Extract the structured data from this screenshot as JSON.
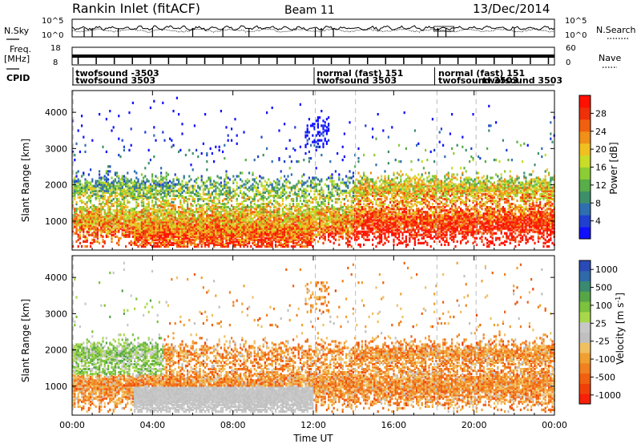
{
  "header": {
    "title": "Rankin Inlet (fitACF)",
    "beam": "Beam 11",
    "date": "13/Dec/2014"
  },
  "left_labels": {
    "nsky": "N.Sky",
    "freq": "Freq.",
    "freq_unit": "[MHz]",
    "cpid": "CPID"
  },
  "right_labels": {
    "nsearch": "N.Search",
    "nave": "Nave"
  },
  "noise_axis": {
    "left_top": "10^5",
    "left_bottom": "10^0",
    "right_top": "10^5",
    "right_bottom": "10^0"
  },
  "freq_axis": {
    "left_top": "18",
    "left_bottom": "8",
    "right_top": "60",
    "right_bottom": "0"
  },
  "cpid_labels": [
    {
      "text": "twofsound  -3503",
      "hour": 0.05,
      "row": 0
    },
    {
      "text": "twofsound  3503",
      "hour": 0.05,
      "row": 1
    },
    {
      "text": "normal (fast)  151",
      "hour": 12.05,
      "row": 0
    },
    {
      "text": "twofsound  3503",
      "hour": 12.05,
      "row": 1
    },
    {
      "text": "normal (fast)  151",
      "hour": 18.1,
      "row": 0
    },
    {
      "text": "twofsound  3503",
      "hour": 18.1,
      "row": 1
    },
    {
      "text": "twofsound  3503",
      "hour": 20.3,
      "row": 1
    }
  ],
  "chart_data": [
    {
      "type": "heatmap",
      "name": "power",
      "ylabel": "Slant Range [km]",
      "x_ticks": [
        "00:00",
        "04:00",
        "08:00",
        "12:00",
        "16:00",
        "20:00",
        "00:00"
      ],
      "y_ticks": [
        1000,
        2000,
        3000,
        4000
      ],
      "ylim": [
        200,
        4600
      ],
      "xlim_hours": [
        0,
        24
      ],
      "colorbar_label": "Power [dB]",
      "colorbar_ticks": [
        4,
        8,
        12,
        16,
        20,
        24,
        28
      ],
      "colorbar_range": [
        0,
        32
      ],
      "colors": [
        "#1010ff",
        "#2040d0",
        "#2f6fb0",
        "#3d8f6a",
        "#58ae48",
        "#8ccc34",
        "#c8dc28",
        "#f0c020",
        "#f09018",
        "#f06010",
        "#f03008",
        "#ff1000"
      ]
    },
    {
      "type": "heatmap",
      "name": "velocity",
      "xlabel": "Time UT",
      "ylabel": "Slant Range [km]",
      "x_ticks": [
        "00:00",
        "04:00",
        "08:00",
        "12:00",
        "16:00",
        "20:00",
        "00:00"
      ],
      "y_ticks": [
        1000,
        2000,
        3000,
        4000
      ],
      "ylim": [
        200,
        4600
      ],
      "xlim_hours": [
        0,
        24
      ],
      "colorbar_label": "Velocity [m s^-1]",
      "colorbar_ticks": [
        "1000",
        "500",
        "100",
        "25",
        "-25",
        "-100",
        "-500",
        "-1000"
      ],
      "colors": [
        "#2a4ab8",
        "#2f6aa8",
        "#3a8a70",
        "#56a648",
        "#7cc23c",
        "#a8d84a",
        "#c8c8c8",
        "#c0c0c0",
        "#f0c060",
        "#f0a030",
        "#f08020",
        "#f06010",
        "#f04008",
        "#f82008"
      ]
    }
  ]
}
